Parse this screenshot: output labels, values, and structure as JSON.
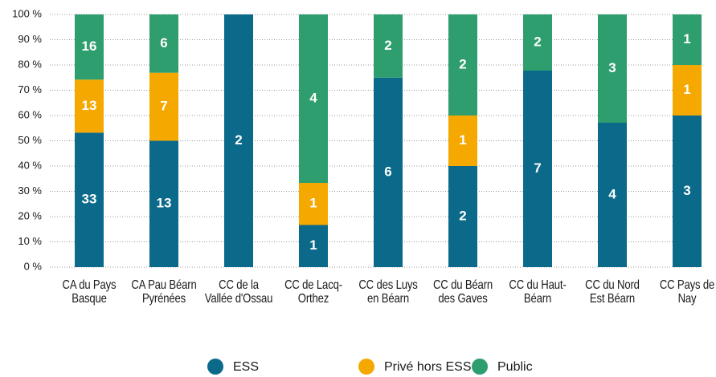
{
  "chart_data": {
    "type": "bar",
    "stack": "percent",
    "categories": [
      "CA du Pays Basque",
      "CA Pau Béarn Pyrénées",
      "CC de la Vallée d'Ossau",
      "CC de Lacq-Orthez",
      "CC des Luys en Béarn",
      "CC du Béarn des Gaves",
      "CC du Haut-Béarn",
      "CC du Nord Est Béarn",
      "CC Pays de Nay"
    ],
    "series": [
      {
        "name": "ESS",
        "color": "#0b6a8a",
        "values": [
          33,
          13,
          2,
          1,
          6,
          2,
          7,
          4,
          3
        ]
      },
      {
        "name": "Privé hors ESS",
        "color": "#f5a800",
        "values": [
          13,
          7,
          null,
          1,
          null,
          1,
          null,
          null,
          1
        ]
      },
      {
        "name": "Public",
        "color": "#2e9e6e",
        "values": [
          16,
          6,
          null,
          4,
          2,
          2,
          2,
          3,
          1
        ]
      }
    ],
    "ylim": [
      0,
      100
    ],
    "yticks": [
      {
        "value": 0,
        "label": "0 %"
      },
      {
        "value": 10,
        "label": "10 %"
      },
      {
        "value": 20,
        "label": "20 %"
      },
      {
        "value": 30,
        "label": "30 %"
      },
      {
        "value": 40,
        "label": "40 %"
      },
      {
        "value": 50,
        "label": "50 %"
      },
      {
        "value": 60,
        "label": "60 %"
      },
      {
        "value": 70,
        "label": "70 %"
      },
      {
        "value": 80,
        "label": "80 %"
      },
      {
        "value": 90,
        "label": "90 %"
      },
      {
        "value": 100,
        "label": "100 %"
      }
    ],
    "grid": true,
    "legend": "bottom"
  }
}
